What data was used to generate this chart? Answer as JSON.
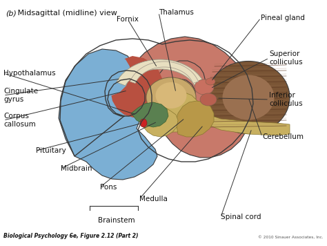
{
  "title_italic": "(b)",
  "title_normal": "  Midsagittal (midline) view",
  "footer_left": "Biological Psychology 6e, Figure 2.12 (Part 2)",
  "footer_right": "© 2010 Sinauer Associates, Inc.",
  "bg_color": "#f5f0e8",
  "colors": {
    "blue_cortex": "#7bafd4",
    "red_cortex": "#c8796a",
    "pink_cortex": "#b07070",
    "cingulate": "#b85040",
    "corpus": "#e8dfc0",
    "thalamus": "#c8a86a",
    "brainstem": "#c8b060",
    "brainstem_dark": "#b89848",
    "cerebellum": "#7a5535",
    "cerebellum_light": "#8b6040",
    "green_hypo": "#5a8050",
    "pituitary": "#cc2222",
    "white_matter": "#e8e0c0",
    "outline": "#3a3a3a"
  }
}
